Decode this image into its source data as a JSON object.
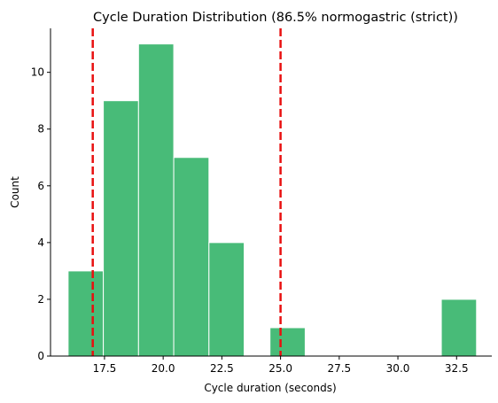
{
  "chart_data": {
    "type": "bar",
    "title": "Cycle Duration Distribution (86.5% normogastric (strict))",
    "xlabel": "Cycle duration (seconds)",
    "ylabel": "Count",
    "xlim": [
      15.2,
      34.0
    ],
    "ylim": [
      0,
      11.55
    ],
    "x_ticks": [
      17.5,
      20.0,
      22.5,
      25.0,
      27.5,
      30.0,
      32.5
    ],
    "x_tick_labels": [
      "17.5",
      "20.0",
      "22.5",
      "25.0",
      "27.5",
      "30.0",
      "32.5"
    ],
    "y_ticks": [
      0,
      2,
      4,
      6,
      8,
      10
    ],
    "y_tick_labels": [
      "0",
      "2",
      "4",
      "6",
      "8",
      "10"
    ],
    "bins": [
      {
        "x0": 15.95,
        "x1": 17.45,
        "count": 3
      },
      {
        "x0": 17.45,
        "x1": 18.95,
        "count": 9
      },
      {
        "x0": 18.95,
        "x1": 20.45,
        "count": 11
      },
      {
        "x0": 20.45,
        "x1": 21.95,
        "count": 7
      },
      {
        "x0": 21.95,
        "x1": 23.45,
        "count": 4
      },
      {
        "x0": 24.55,
        "x1": 26.05,
        "count": 1
      },
      {
        "x0": 31.85,
        "x1": 33.35,
        "count": 2
      }
    ],
    "reference_lines": [
      17.0,
      25.0
    ],
    "colors": {
      "bar": "#48bb78",
      "bar_edge": "#ffffff",
      "reference_line": "#e81010"
    },
    "grid": false
  }
}
